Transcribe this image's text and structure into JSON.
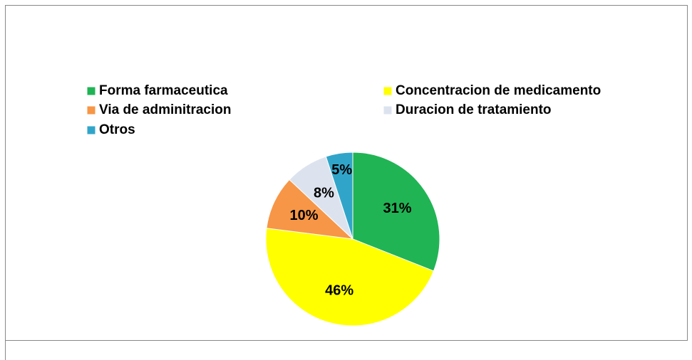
{
  "chart_data": {
    "type": "pie",
    "categories": [
      "Forma farmaceutica",
      "Concentracion de medicamento",
      "Via de adminitracion",
      "Duracion de tratamiento",
      "Otros"
    ],
    "values": [
      31,
      46,
      10,
      8,
      5
    ],
    "value_labels": [
      "31%",
      "46%",
      "10%",
      "8%",
      "5%"
    ],
    "colors": [
      "#20b455",
      "#ffff00",
      "#f79646",
      "#dce3ef",
      "#31a5c9"
    ]
  }
}
